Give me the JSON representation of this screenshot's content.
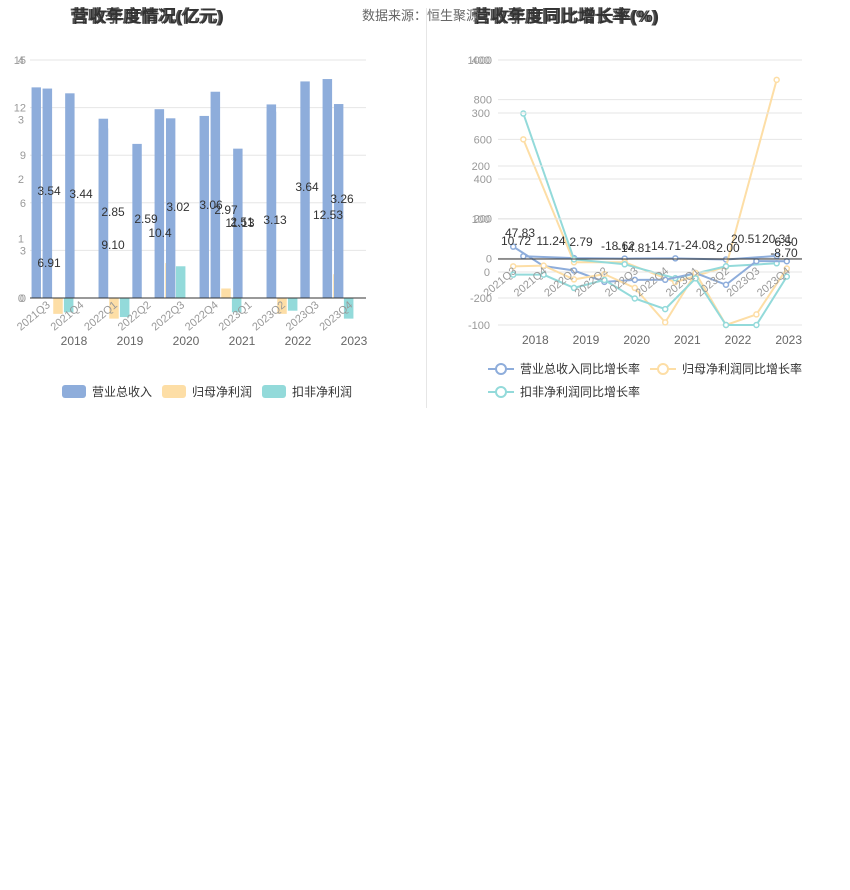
{
  "source": {
    "label": "数据来源：",
    "name": "恒生聚源"
  },
  "titles": {
    "left_back": "营收年度情况(亿元)",
    "left_front": "营收季度情况(亿元)",
    "right_back": "营收年度同比增长率(%)",
    "right_front": "营收季度同比增长率(%)"
  },
  "colors": {
    "revenue": "#8eaddb",
    "net_profit": "#fddea6",
    "deducted": "#93dada",
    "axis": "#333333",
    "tick": "#999999",
    "grid": "#e6e6e6"
  },
  "chart_data": [
    {
      "type": "bar",
      "title": "营收年度情况(亿元)",
      "categories": [
        "2018",
        "2019",
        "2020",
        "2021",
        "2022",
        "2023"
      ],
      "series": [
        {
          "name": "营业总收入",
          "values": [
            13.2,
            11.3,
            11.9,
            13.0,
            12.2,
            13.8
          ]
        },
        {
          "name": "归母净利润",
          "values": [
            -1.0,
            -1.3,
            2.2,
            0.6,
            -1.0,
            1.5
          ]
        },
        {
          "name": "扣非净利润",
          "values": [
            -0.9,
            -1.2,
            2.0,
            -0.9,
            -0.8,
            -1.3
          ]
        }
      ],
      "yticks": [
        "0",
        "3",
        "6",
        "9",
        "12",
        "15"
      ],
      "ylim": [
        -2.2,
        15
      ]
    },
    {
      "type": "bar",
      "title": "营收季度情况(亿元)",
      "categories": [
        "2021Q3",
        "2021Q4",
        "2022Q1",
        "2022Q2",
        "2022Q3",
        "2022Q4",
        "2023Q1",
        "2023Q2",
        "2023Q3",
        "2023Q4"
      ],
      "series": [
        {
          "name": "营业总收入",
          "values": [
            3.54,
            3.44,
            2.85,
            2.59,
            3.02,
            3.06,
            2.51,
            3.13,
            3.64,
            3.26
          ]
        },
        {
          "name": "归母净利润",
          "values": [
            null,
            null,
            null,
            null,
            null,
            null,
            null,
            null,
            null,
            null
          ]
        },
        {
          "name": "扣非净利润",
          "values": [
            null,
            null,
            null,
            null,
            null,
            null,
            null,
            null,
            null,
            null
          ]
        }
      ],
      "yticks": [
        "0",
        "1",
        "2",
        "3",
        "4"
      ],
      "ylim": [
        -0.55,
        4
      ],
      "value_labels": [
        "3.54",
        "3.44",
        "2.85",
        "2.59",
        "3.02",
        "3.06",
        "2.97",
        "2.51",
        "3.13",
        "3.64",
        "3.26"
      ],
      "overlay_labels": [
        "6.91",
        "9.10",
        "10.4",
        "11.13",
        "12.53"
      ]
    },
    {
      "type": "line",
      "title": "营收年度同比增长率(%)",
      "categories": [
        "2018",
        "2019",
        "2020",
        "2021",
        "2022",
        "2023"
      ],
      "series": [
        {
          "name": "营业总收入同比增长率",
          "values": [
            10.72,
            1.24,
            -1.19,
            0.0,
            -5.73,
            12.18
          ]
        },
        {
          "name": "归母净利润同比增长率",
          "values": [
            600,
            -20,
            -20,
            -120,
            -42,
            900
          ]
        },
        {
          "name": "扣非净利润同比增长率",
          "values": [
            730,
            -5,
            -30,
            -100,
            -40,
            -25
          ]
        }
      ],
      "yticks": [
        "-200",
        "0",
        "200",
        "400",
        "600",
        "800",
        "1000"
      ],
      "ylim": [
        -200,
        1000
      ]
    },
    {
      "type": "line",
      "title": "营收季度同比增长率(%)",
      "categories": [
        "2021Q3",
        "2021Q4",
        "2022Q1",
        "2022Q2",
        "2022Q3",
        "2022Q4",
        "2023Q1",
        "2023Q2",
        "2023Q3",
        "2023Q4"
      ],
      "series": [
        {
          "name": "营业总收入同比增长率",
          "values": [
            47.83,
            11.24,
            2.79,
            -18.62,
            -14.81,
            -14.71,
            -2.0,
            -24.08,
            20.51,
            20.31
          ]
        },
        {
          "name": "归母净利润同比增长率",
          "values": [
            10.72,
            12.0,
            -14.0,
            -4.0,
            -30.0,
            -95.0,
            -2.0,
            -180.0,
            -80.0,
            6.5
          ]
        },
        {
          "name": "扣非净利润同比增长率",
          "values": [
            -5.0,
            -5.0,
            -30.0,
            -15.0,
            -50.0,
            -70.0,
            -12.0,
            -100.0,
            -100.0,
            -8.7
          ]
        }
      ],
      "yticks": [
        "-100",
        "0",
        "100",
        "200",
        "300",
        "400"
      ],
      "ylim": [
        -100,
        400
      ],
      "value_labels": [
        "47.83",
        "10.72",
        "11.24",
        "2.79",
        "-18.62",
        "-14.81",
        "-14.71",
        "-24.08",
        "-2.00",
        "20.51",
        "20.31",
        "6.50",
        "-8.70"
      ]
    }
  ],
  "left_axis": {
    "quarters": [
      "2021Q3",
      "2021Q4",
      "2022Q1",
      "2022Q2",
      "2022Q3",
      "2022Q4",
      "2023Q1",
      "2023Q2",
      "2023Q3",
      "2023Q4"
    ],
    "years": [
      "2018",
      "2019",
      "2020",
      "2021",
      "2022",
      "2023"
    ]
  },
  "legend_left": [
    "营业总收入",
    "归母净利润",
    "扣非净利润"
  ],
  "legend_right": [
    "营业总收入同比增长率",
    "归母净利润同比增长率",
    "扣非净利润同比增长率"
  ]
}
